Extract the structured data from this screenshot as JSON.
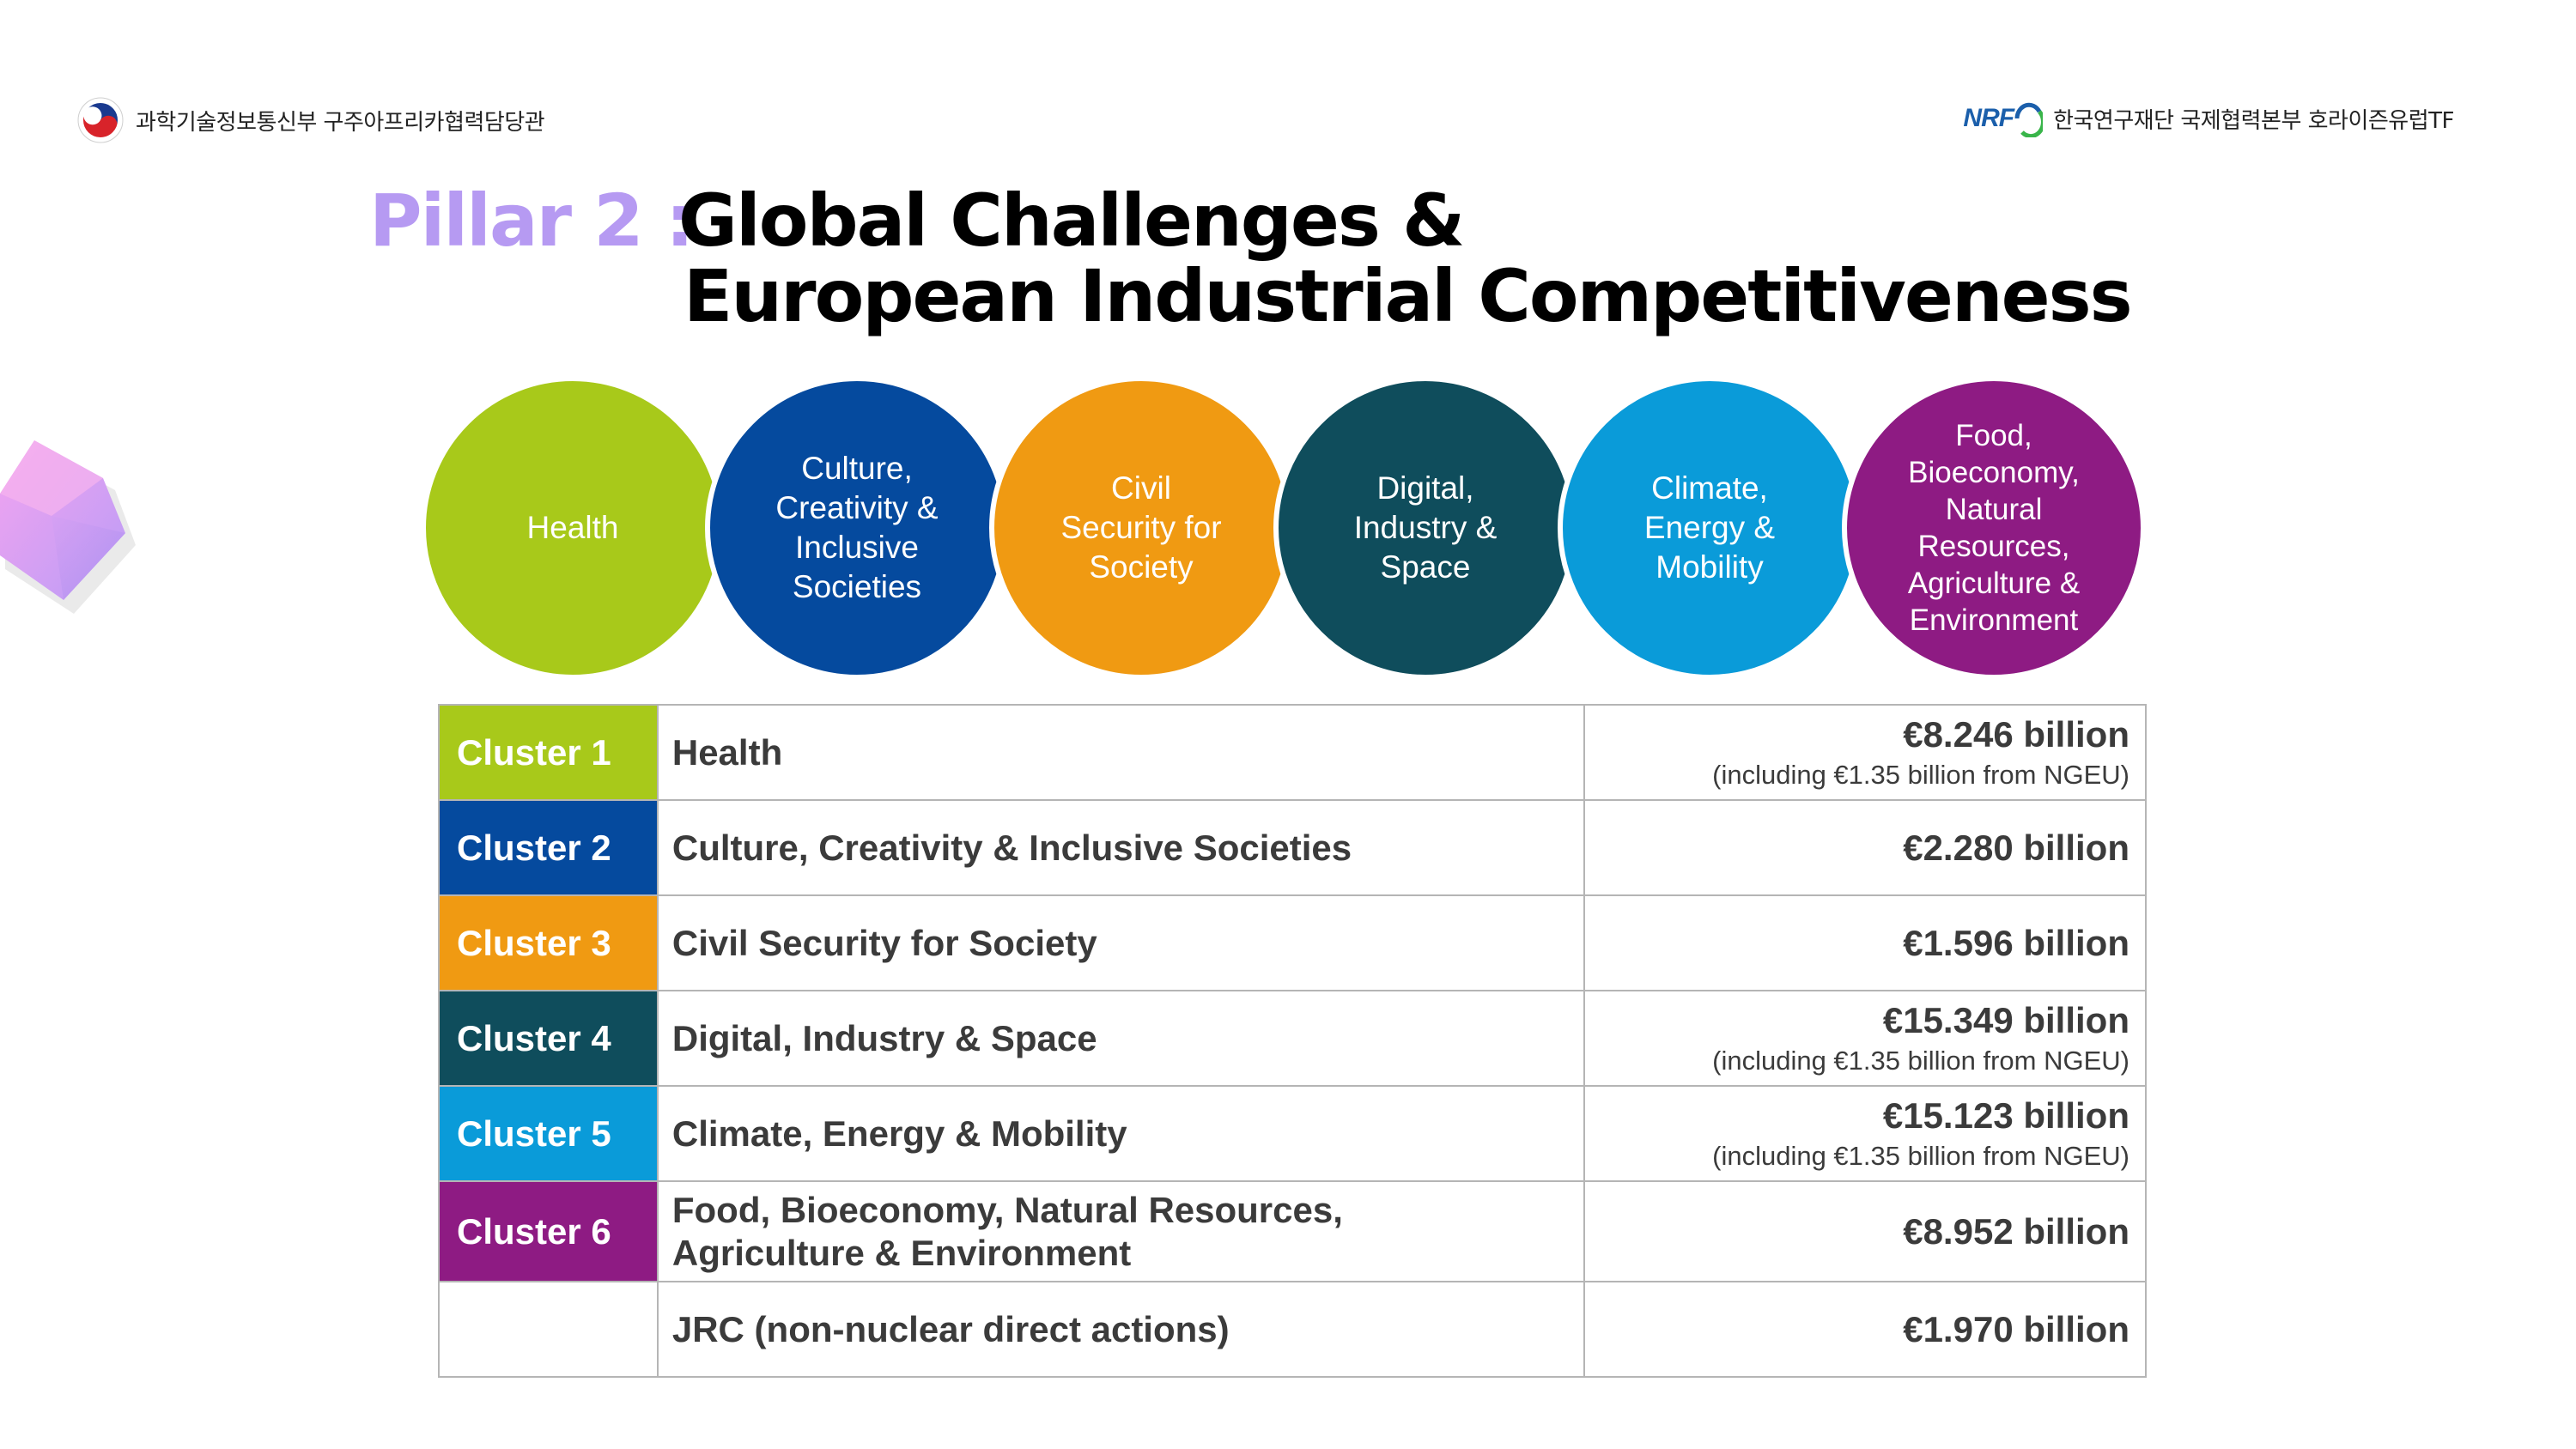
{
  "header": {
    "left_text": "과학기술정보통신부 구주아프리카협력담당관",
    "right_logo": "NRF",
    "right_text": "한국연구재단 국제협력본부 호라이즌유럽TF"
  },
  "title": {
    "pillar": "Pillar 2 :",
    "line1": "Global Challenges &",
    "line2": "European Industrial Competitiveness"
  },
  "circles": [
    {
      "label": "Health",
      "color": "#a8c91a"
    },
    {
      "label": "Culture,\nCreativity &\nInclusive\nSocieties",
      "color": "#054a9e"
    },
    {
      "label": "Civil\nSecurity for\nSociety",
      "color": "#f09a12"
    },
    {
      "label": "Digital,\nIndustry &\nSpace",
      "color": "#0f4d5c"
    },
    {
      "label": "Climate,\nEnergy &\nMobility",
      "color": "#0a9bd9"
    },
    {
      "label": "Food,\nBioeconomy,\nNatural\nResources,\nAgriculture &\nEnvironment",
      "color": "#8e1b83"
    }
  ],
  "table": {
    "rows": [
      {
        "cluster": "Cluster 1",
        "color": "#a8c91a",
        "name": "Health",
        "amount": "€8.246 billion",
        "note": "(including €1.35 billion from NGEU)"
      },
      {
        "cluster": "Cluster 2",
        "color": "#054a9e",
        "name": "Culture, Creativity & Inclusive Societies",
        "amount": "€2.280 billion",
        "note": ""
      },
      {
        "cluster": "Cluster 3",
        "color": "#f09a12",
        "name": "Civil Security for Society",
        "amount": "€1.596 billion",
        "note": ""
      },
      {
        "cluster": "Cluster 4",
        "color": "#0f4d5c",
        "name": "Digital, Industry & Space",
        "amount": "€15.349 billion",
        "note": "(including €1.35 billion from NGEU)"
      },
      {
        "cluster": "Cluster 5",
        "color": "#0a9bd9",
        "name": "Climate, Energy & Mobility",
        "amount": "€15.123 billion",
        "note": "(including €1.35 billion from NGEU)"
      },
      {
        "cluster": "Cluster 6",
        "color": "#8e1b83",
        "name": "Food, Bioeconomy, Natural Resources,\nAgriculture & Environment",
        "amount": "€8.952 billion",
        "note": ""
      },
      {
        "cluster": "",
        "color": "#ffffff",
        "name": "JRC (non-nuclear direct actions)",
        "amount": "€1.970 billion",
        "note": ""
      }
    ]
  },
  "colors": {
    "pillar_accent": "#b69af2",
    "table_border": "#b5b5b5",
    "nrf_blue": "#1b5fab"
  }
}
